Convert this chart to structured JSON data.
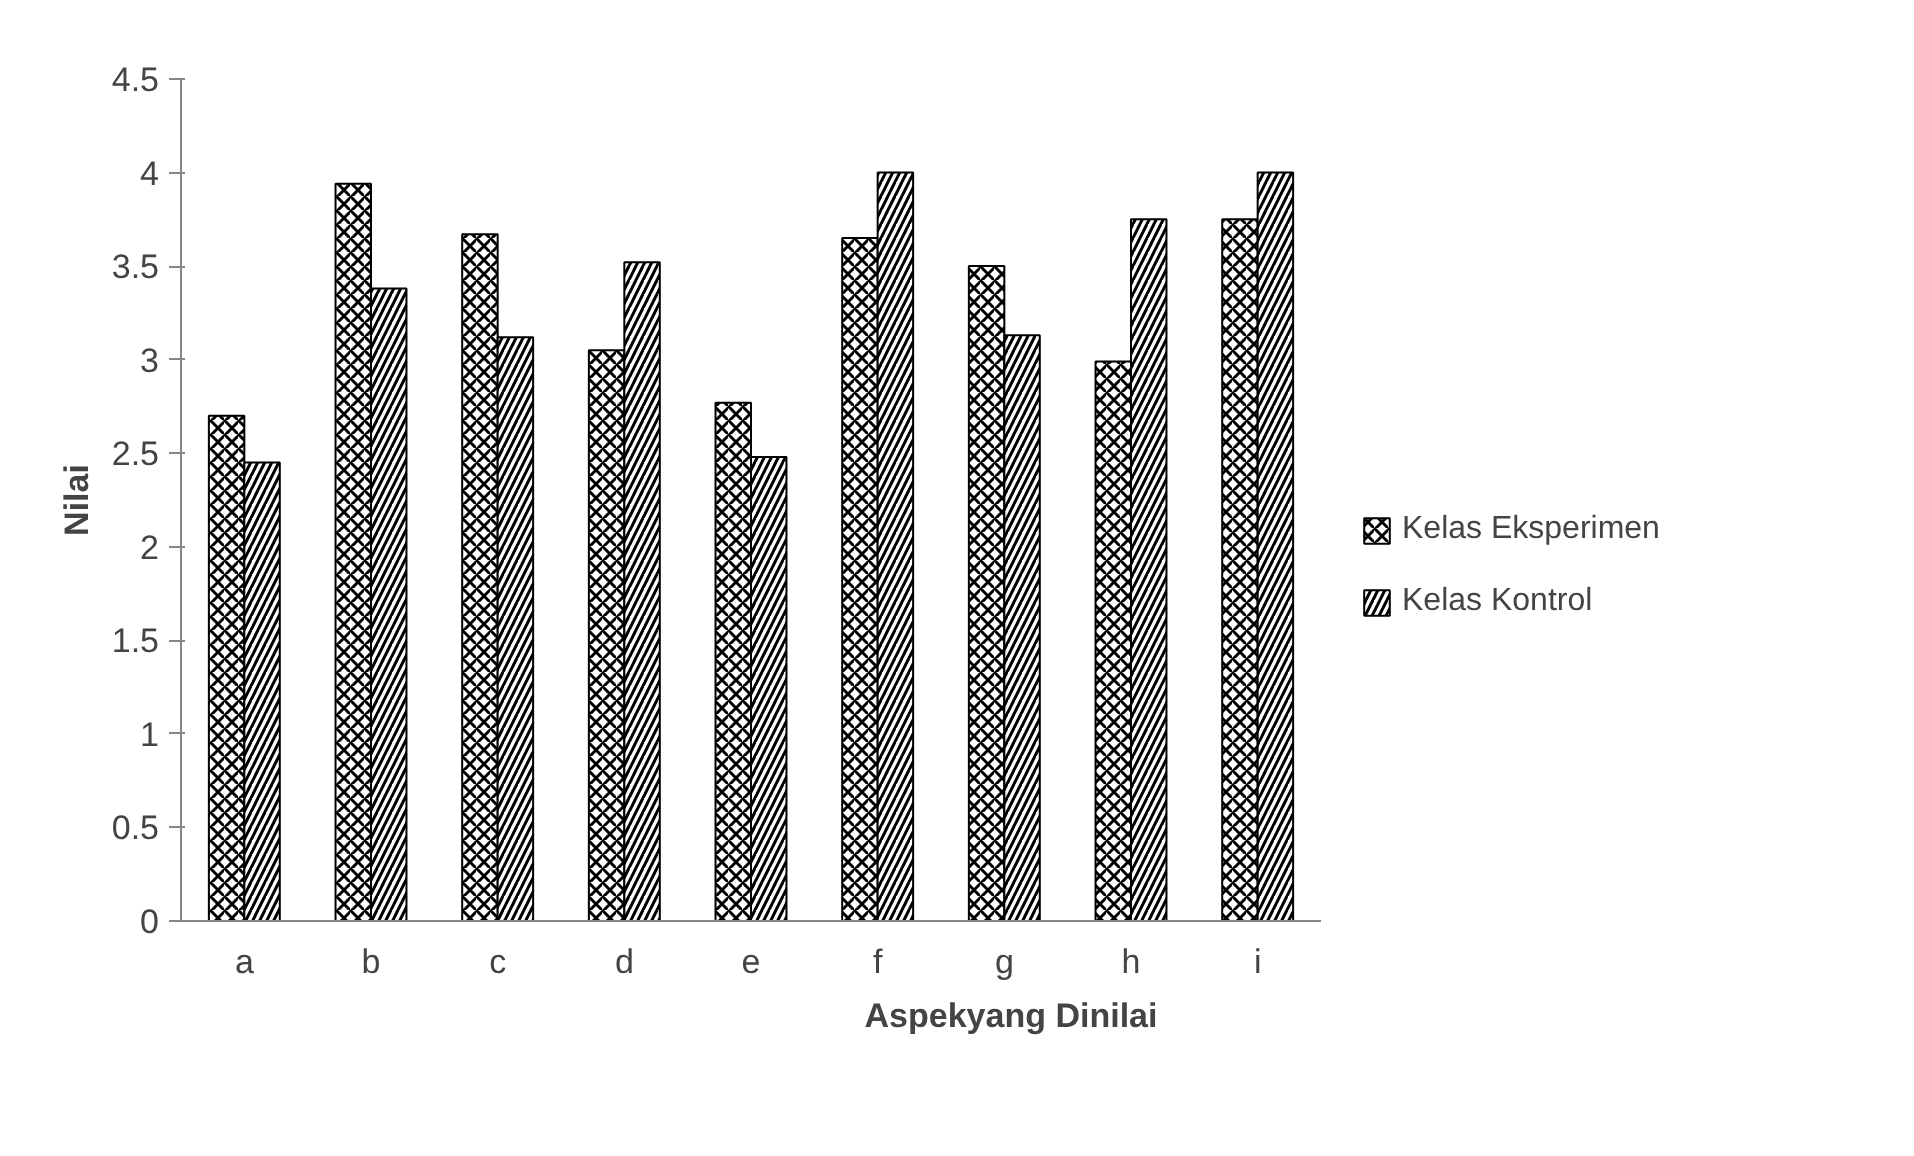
{
  "chart_data": {
    "type": "bar",
    "xlabel": "Aspekyang Dinilai",
    "ylabel": "Nilai",
    "categories": [
      "a",
      "b",
      "c",
      "d",
      "e",
      "f",
      "g",
      "h",
      "i"
    ],
    "series": [
      {
        "name": "Kelas Eksperimen",
        "color": "#ffffff",
        "values": [
          2.7,
          3.94,
          3.67,
          3.05,
          2.77,
          3.65,
          3.5,
          2.99,
          3.75
        ]
      },
      {
        "name": "Kelas Kontrol",
        "color": "#ffffff",
        "values": [
          2.45,
          3.38,
          3.12,
          3.52,
          2.48,
          4.0,
          3.13,
          3.75,
          4.0
        ]
      }
    ],
    "ylim": [
      0,
      4.5
    ],
    "yticks": [
      0,
      0.5,
      1,
      1.5,
      2,
      2.5,
      3,
      3.5,
      4,
      4.5
    ],
    "grid": false,
    "legend": "right"
  }
}
